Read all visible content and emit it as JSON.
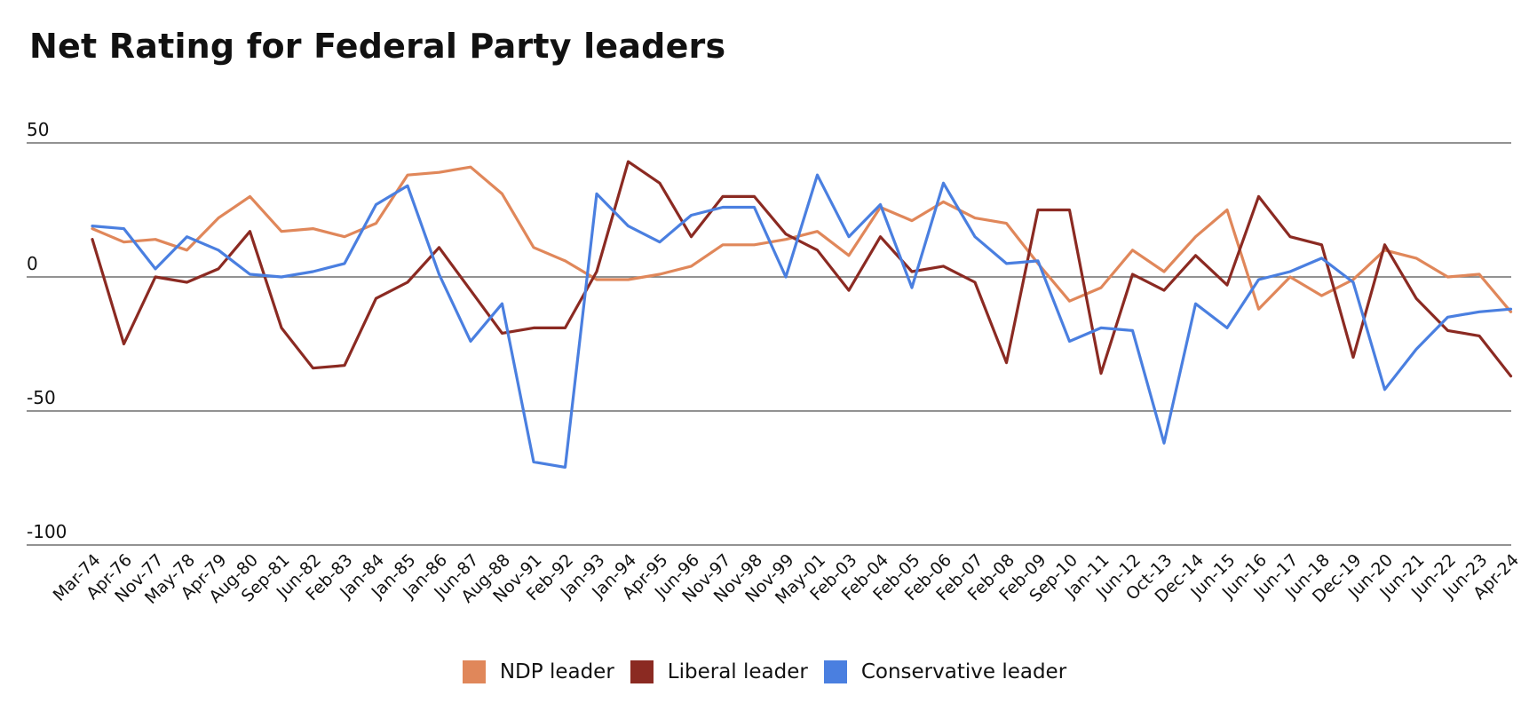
{
  "chart_data": {
    "type": "line",
    "title": "Net Rating for Federal Party leaders",
    "ylim": [
      -100,
      50
    ],
    "yticks": [
      50,
      0,
      -50,
      -100
    ],
    "grid": true,
    "legend_position": "bottom",
    "categories": [
      "Mar-74",
      "Apr-76",
      "Nov-77",
      "May-78",
      "Apr-79",
      "Aug-80",
      "Sep-81",
      "Jun-82",
      "Feb-83",
      "Jan-84",
      "Jan-85",
      "Jan-86",
      "Jun-87",
      "Aug-88",
      "Nov-91",
      "Feb-92",
      "Jan-93",
      "Jan-94",
      "Apr-95",
      "Jun-96",
      "Nov-97",
      "Nov-98",
      "Nov-99",
      "May-01",
      "Feb-03",
      "Feb-04",
      "Feb-05",
      "Feb-06",
      "Feb-07",
      "Feb-08",
      "Feb-09",
      "Sep-10",
      "Jan-11",
      "Jun-12",
      "Oct-13",
      "Dec-14",
      "Jun-15",
      "Jun-16",
      "Jun-17",
      "Jun-18",
      "Dec-19",
      "Jun-20",
      "Jun-21",
      "Jun-22",
      "Jun-23",
      "Apr-24"
    ],
    "series": [
      {
        "name": "NDP leader",
        "color": "#e0875a",
        "values": [
          18,
          13,
          14,
          10,
          22,
          30,
          17,
          18,
          15,
          20,
          38,
          39,
          41,
          31,
          11,
          6,
          -1,
          -1,
          1,
          4,
          12,
          12,
          14,
          17,
          8,
          26,
          21,
          28,
          22,
          20,
          5,
          -9,
          -4,
          10,
          2,
          15,
          25,
          -12,
          0,
          -7,
          -1,
          10,
          7,
          0,
          1,
          -13
        ]
      },
      {
        "name": "Liberal leader",
        "color": "#8b2a22",
        "values": [
          14,
          -25,
          0,
          -2,
          3,
          17,
          -19,
          -34,
          -33,
          -8,
          -2,
          11,
          -5,
          -21,
          -19,
          -19,
          2,
          43,
          35,
          15,
          30,
          30,
          16,
          10,
          -5,
          15,
          2,
          4,
          -2,
          -32,
          25,
          25,
          -36,
          1,
          -5,
          8,
          -3,
          30,
          15,
          12,
          -30,
          12,
          -8,
          -20,
          -22,
          -37
        ]
      },
      {
        "name": "Conservative leader",
        "color": "#4a7fe0",
        "values": [
          19,
          18,
          3,
          15,
          10,
          1,
          0,
          2,
          5,
          27,
          34,
          1,
          -24,
          -10,
          -69,
          -71,
          31,
          19,
          13,
          23,
          26,
          26,
          0,
          38,
          15,
          27,
          -4,
          35,
          15,
          5,
          6,
          -24,
          -19,
          -20,
          -62,
          -10,
          -19,
          -1,
          2,
          7,
          -2,
          -42,
          -27,
          -15,
          -13,
          -12
        ]
      }
    ]
  }
}
